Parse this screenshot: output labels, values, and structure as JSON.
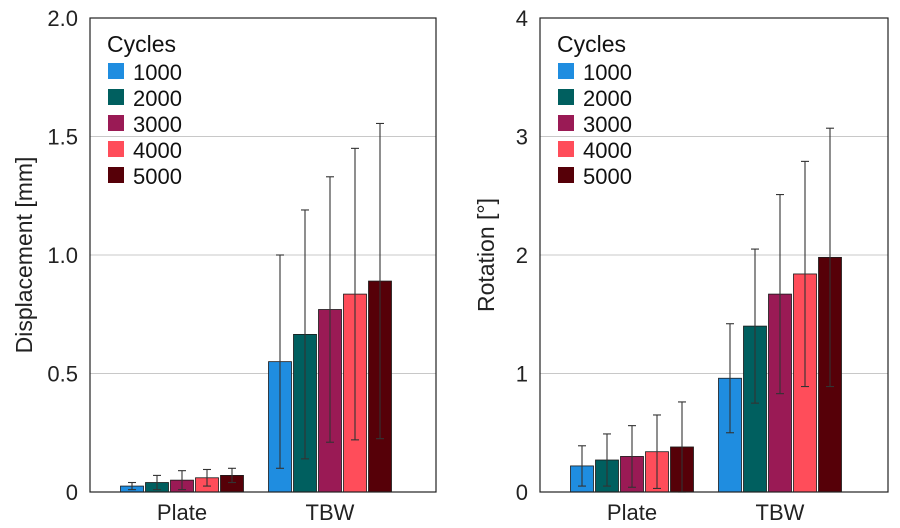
{
  "chart_data": [
    {
      "type": "bar",
      "categories": [
        "Plate",
        "TBW"
      ],
      "ylabel": "Displacement [mm]",
      "xlabel": "",
      "ylim": [
        0,
        2.0
      ],
      "yticks": [
        "0",
        "0.5",
        "1.0",
        "1.5",
        "2.0"
      ],
      "ytick_values": [
        0,
        0.5,
        1.0,
        1.5,
        2.0
      ],
      "grid": true,
      "legend": {
        "title": "Cycles",
        "position": "top-left"
      },
      "series": [
        {
          "name": "1000",
          "color": "#1f8de0",
          "values": [
            0.025,
            0.55
          ],
          "errors": [
            0.015,
            0.45
          ]
        },
        {
          "name": "2000",
          "color": "#005f5f",
          "values": [
            0.04,
            0.665
          ],
          "errors": [
            0.03,
            0.525
          ]
        },
        {
          "name": "3000",
          "color": "#9a1a55",
          "values": [
            0.05,
            0.77
          ],
          "errors": [
            0.04,
            0.56
          ]
        },
        {
          "name": "4000",
          "color": "#ff4d5a",
          "values": [
            0.06,
            0.835
          ],
          "errors": [
            0.035,
            0.615
          ]
        },
        {
          "name": "5000",
          "color": "#560008",
          "values": [
            0.07,
            0.89
          ],
          "errors": [
            0.03,
            0.665
          ]
        }
      ]
    },
    {
      "type": "bar",
      "categories": [
        "Plate",
        "TBW"
      ],
      "ylabel": "Rotation [°]",
      "xlabel": "",
      "ylim": [
        0,
        4
      ],
      "yticks": [
        "0",
        "1",
        "2",
        "3",
        "4"
      ],
      "ytick_values": [
        0,
        1,
        2,
        3,
        4
      ],
      "grid": true,
      "legend": {
        "title": "Cycles",
        "position": "top-left"
      },
      "series": [
        {
          "name": "1000",
          "color": "#1f8de0",
          "values": [
            0.22,
            0.96
          ],
          "errors": [
            0.17,
            0.46
          ]
        },
        {
          "name": "2000",
          "color": "#005f5f",
          "values": [
            0.27,
            1.4
          ],
          "errors": [
            0.22,
            0.65
          ]
        },
        {
          "name": "3000",
          "color": "#9a1a55",
          "values": [
            0.3,
            1.67
          ],
          "errors": [
            0.26,
            0.84
          ]
        },
        {
          "name": "4000",
          "color": "#ff4d5a",
          "values": [
            0.34,
            1.84
          ],
          "errors": [
            0.31,
            0.95
          ]
        },
        {
          "name": "5000",
          "color": "#560008",
          "values": [
            0.38,
            1.98
          ],
          "errors": [
            0.38,
            1.09
          ]
        }
      ]
    }
  ]
}
